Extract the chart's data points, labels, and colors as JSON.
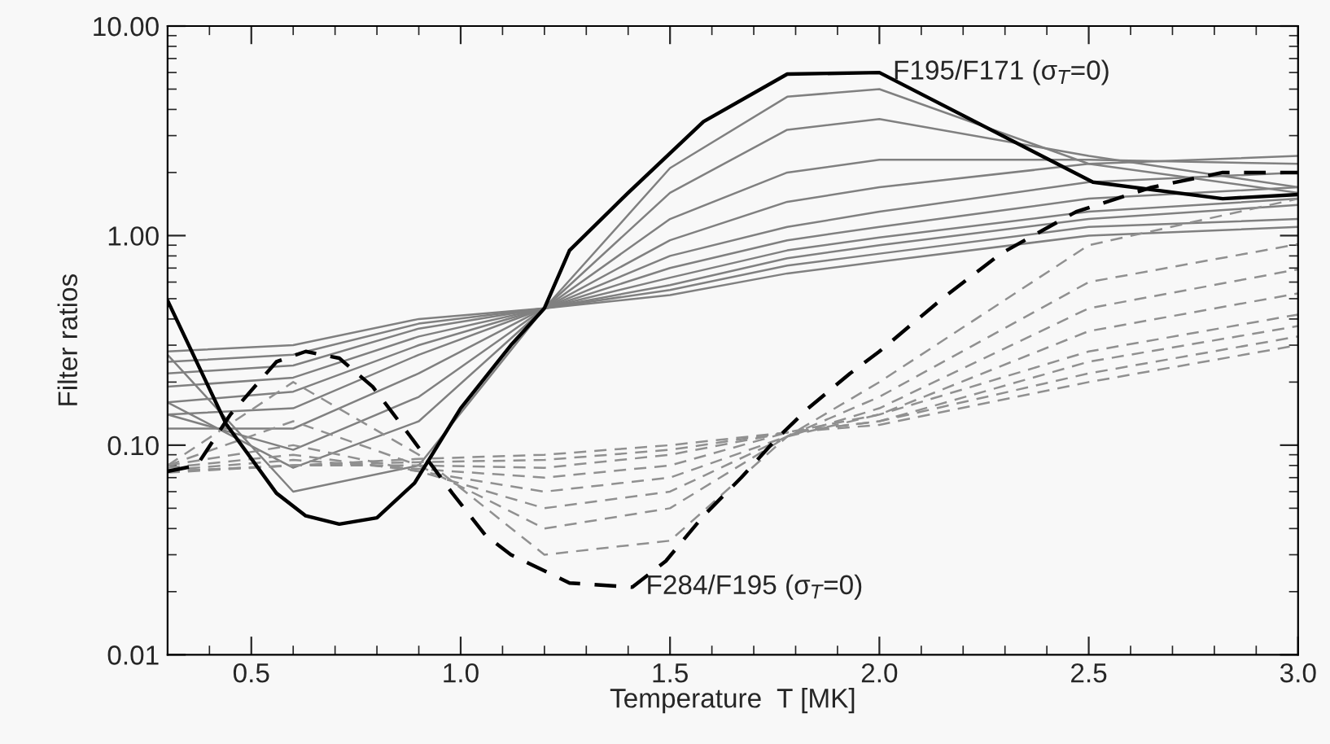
{
  "chart_data": {
    "type": "line",
    "xlabel": "Temperature  T [MK]",
    "ylabel": "Filter ratios",
    "log": "y",
    "legend": false,
    "grid": false,
    "xlim": [
      0.3,
      3.0
    ],
    "xticks": [
      {
        "value": 0.5,
        "label": "0.5"
      },
      {
        "value": 1.0,
        "label": "1.0"
      },
      {
        "value": 1.5,
        "label": "1.5"
      },
      {
        "value": 2.0,
        "label": "2.0"
      },
      {
        "value": 2.5,
        "label": "2.5"
      },
      {
        "value": 3.0,
        "label": "3.0"
      }
    ],
    "ylim": [
      0.01,
      10
    ],
    "yticks": [
      {
        "value": 0.01,
        "label": "0.01"
      },
      {
        "value": 0.1,
        "label": "0.10"
      },
      {
        "value": 1,
        "label": "1.00"
      },
      {
        "value": 10,
        "label": "10.00"
      }
    ],
    "x": [
      0.3,
      0.6,
      0.9,
      1.2,
      1.5,
      1.78,
      2.0,
      2.5,
      3.0
    ],
    "series": [
      {
        "color": "#808080",
        "line_style": "solid",
        "values": [
          0.27,
          0.06,
          0.08,
          0.45,
          2.1,
          4.6,
          5.0,
          2.2,
          1.6
        ]
      },
      {
        "color": "#808080",
        "line_style": "solid",
        "values": [
          0.16,
          0.078,
          0.13,
          0.45,
          1.6,
          3.2,
          3.6,
          2.4,
          1.7
        ]
      },
      {
        "color": "#808080",
        "line_style": "solid",
        "values": [
          0.14,
          0.095,
          0.17,
          0.45,
          1.2,
          2.0,
          2.3,
          2.3,
          2.2
        ]
      },
      {
        "color": "#808080",
        "line_style": "solid",
        "values": [
          0.12,
          0.12,
          0.22,
          0.45,
          0.95,
          1.45,
          1.7,
          2.2,
          2.4
        ]
      },
      {
        "color": "#808080",
        "line_style": "solid",
        "values": [
          0.14,
          0.15,
          0.27,
          0.45,
          0.8,
          1.1,
          1.3,
          1.8,
          2.0
        ]
      },
      {
        "color": "#808080",
        "line_style": "solid",
        "values": [
          0.16,
          0.18,
          0.3,
          0.45,
          0.7,
          0.95,
          1.1,
          1.5,
          1.7
        ]
      },
      {
        "color": "#808080",
        "line_style": "solid",
        "values": [
          0.19,
          0.21,
          0.33,
          0.45,
          0.63,
          0.85,
          0.98,
          1.3,
          1.5
        ]
      },
      {
        "color": "#808080",
        "line_style": "solid",
        "values": [
          0.22,
          0.24,
          0.36,
          0.45,
          0.58,
          0.78,
          0.9,
          1.2,
          1.4
        ]
      },
      {
        "color": "#808080",
        "line_style": "solid",
        "values": [
          0.25,
          0.27,
          0.38,
          0.45,
          0.55,
          0.72,
          0.82,
          1.1,
          1.2
        ]
      },
      {
        "color": "#808080",
        "line_style": "solid",
        "values": [
          0.28,
          0.3,
          0.4,
          0.45,
          0.52,
          0.66,
          0.75,
          1.0,
          1.1
        ]
      },
      {
        "color": "#909090",
        "line_style": "dashed",
        "values": [
          0.08,
          0.2,
          0.09,
          0.03,
          0.035,
          0.11,
          0.2,
          0.9,
          1.5
        ]
      },
      {
        "color": "#909090",
        "line_style": "dashed",
        "values": [
          0.08,
          0.13,
          0.08,
          0.04,
          0.05,
          0.11,
          0.17,
          0.6,
          0.91
        ]
      },
      {
        "color": "#909090",
        "line_style": "dashed",
        "values": [
          0.08,
          0.1,
          0.075,
          0.05,
          0.06,
          0.11,
          0.15,
          0.45,
          0.69
        ]
      },
      {
        "color": "#909090",
        "line_style": "dashed",
        "values": [
          0.078,
          0.09,
          0.075,
          0.06,
          0.07,
          0.11,
          0.14,
          0.35,
          0.53
        ]
      },
      {
        "color": "#909090",
        "line_style": "dashed",
        "values": [
          0.076,
          0.085,
          0.077,
          0.07,
          0.08,
          0.115,
          0.14,
          0.28,
          0.42
        ]
      },
      {
        "color": "#909090",
        "line_style": "dashed",
        "values": [
          0.075,
          0.08,
          0.08,
          0.078,
          0.09,
          0.115,
          0.13,
          0.25,
          0.37
        ]
      },
      {
        "color": "#909090",
        "line_style": "dashed",
        "values": [
          0.075,
          0.08,
          0.083,
          0.085,
          0.095,
          0.115,
          0.13,
          0.22,
          0.33
        ]
      },
      {
        "color": "#909090",
        "line_style": "dashed",
        "values": [
          0.074,
          0.08,
          0.086,
          0.09,
          0.1,
          0.115,
          0.125,
          0.2,
          0.3
        ]
      },
      {
        "color": "#000000",
        "line_style": "solid",
        "x": [
          0.3,
          0.44,
          0.56,
          0.63,
          0.71,
          0.8,
          0.89,
          1.0,
          1.12,
          1.2,
          1.26,
          1.4,
          1.58,
          1.78,
          2.0,
          2.51,
          2.82,
          3.0
        ],
        "values": [
          0.49,
          0.126,
          0.059,
          0.046,
          0.042,
          0.045,
          0.066,
          0.15,
          0.3,
          0.45,
          0.85,
          1.6,
          3.5,
          5.9,
          6.0,
          1.8,
          1.5,
          1.57
        ]
      },
      {
        "color": "#000000",
        "line_style": "dashed",
        "x": [
          0.3,
          0.37,
          0.45,
          0.56,
          0.63,
          0.71,
          0.79,
          0.88,
          0.98,
          1.06,
          1.12,
          1.26,
          1.41,
          1.49,
          1.58,
          1.67,
          1.75,
          1.83,
          1.93,
          2.0,
          2.15,
          2.29,
          2.47,
          2.65,
          2.82,
          3.0
        ],
        "values": [
          0.075,
          0.08,
          0.14,
          0.25,
          0.28,
          0.26,
          0.19,
          0.11,
          0.059,
          0.037,
          0.03,
          0.022,
          0.021,
          0.028,
          0.046,
          0.07,
          0.105,
          0.15,
          0.22,
          0.28,
          0.5,
          0.82,
          1.3,
          1.7,
          2.0,
          2.0
        ]
      }
    ],
    "annotations": [
      {
        "text": "F195/F171 (σ$_{T}$=0)",
        "x": 2.0,
        "y": 6.0
      },
      {
        "text": "F284/F195 (σ$_{T}$=0)",
        "x": 1.41,
        "y": 0.021
      }
    ]
  }
}
